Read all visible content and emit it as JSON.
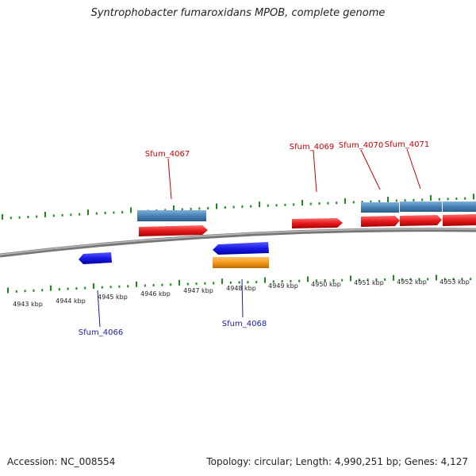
{
  "title": "Syntrophobacter fumaroxidans MPOB, complete genome",
  "footer": {
    "accession": "Accession: NC_008554",
    "summary": "Topology: circular; Length: 4,990,251 bp; Genes: 4,127"
  },
  "colors": {
    "forward_cds": "#e41a1c",
    "reverse_cds": "#1a1ae6",
    "forward_gene": "#4682b4",
    "reverse_rna": "#f59a1e",
    "ticks": "#1a8a1a",
    "backbone": "#888888",
    "forward_label": "#cc0000",
    "reverse_label": "#1a1ab4"
  },
  "tick_labels": [
    "4943 kbp",
    "4944 kbp",
    "4945 kbp",
    "4946 kbp",
    "4947 kbp",
    "4948 kbp",
    "4949 kbp",
    "4950 kbp",
    "4951 kbp",
    "4952 kbp",
    "4953 kbp"
  ],
  "gene_labels": [
    {
      "text": "Sfum_4067",
      "strand": "forward"
    },
    {
      "text": "Sfum_4069",
      "strand": "forward"
    },
    {
      "text": "Sfum_4070",
      "strand": "forward"
    },
    {
      "text": "Sfum_4071",
      "strand": "forward"
    },
    {
      "text": "Sfum_4066",
      "strand": "reverse"
    },
    {
      "text": "Sfum_4068",
      "strand": "reverse"
    }
  ]
}
